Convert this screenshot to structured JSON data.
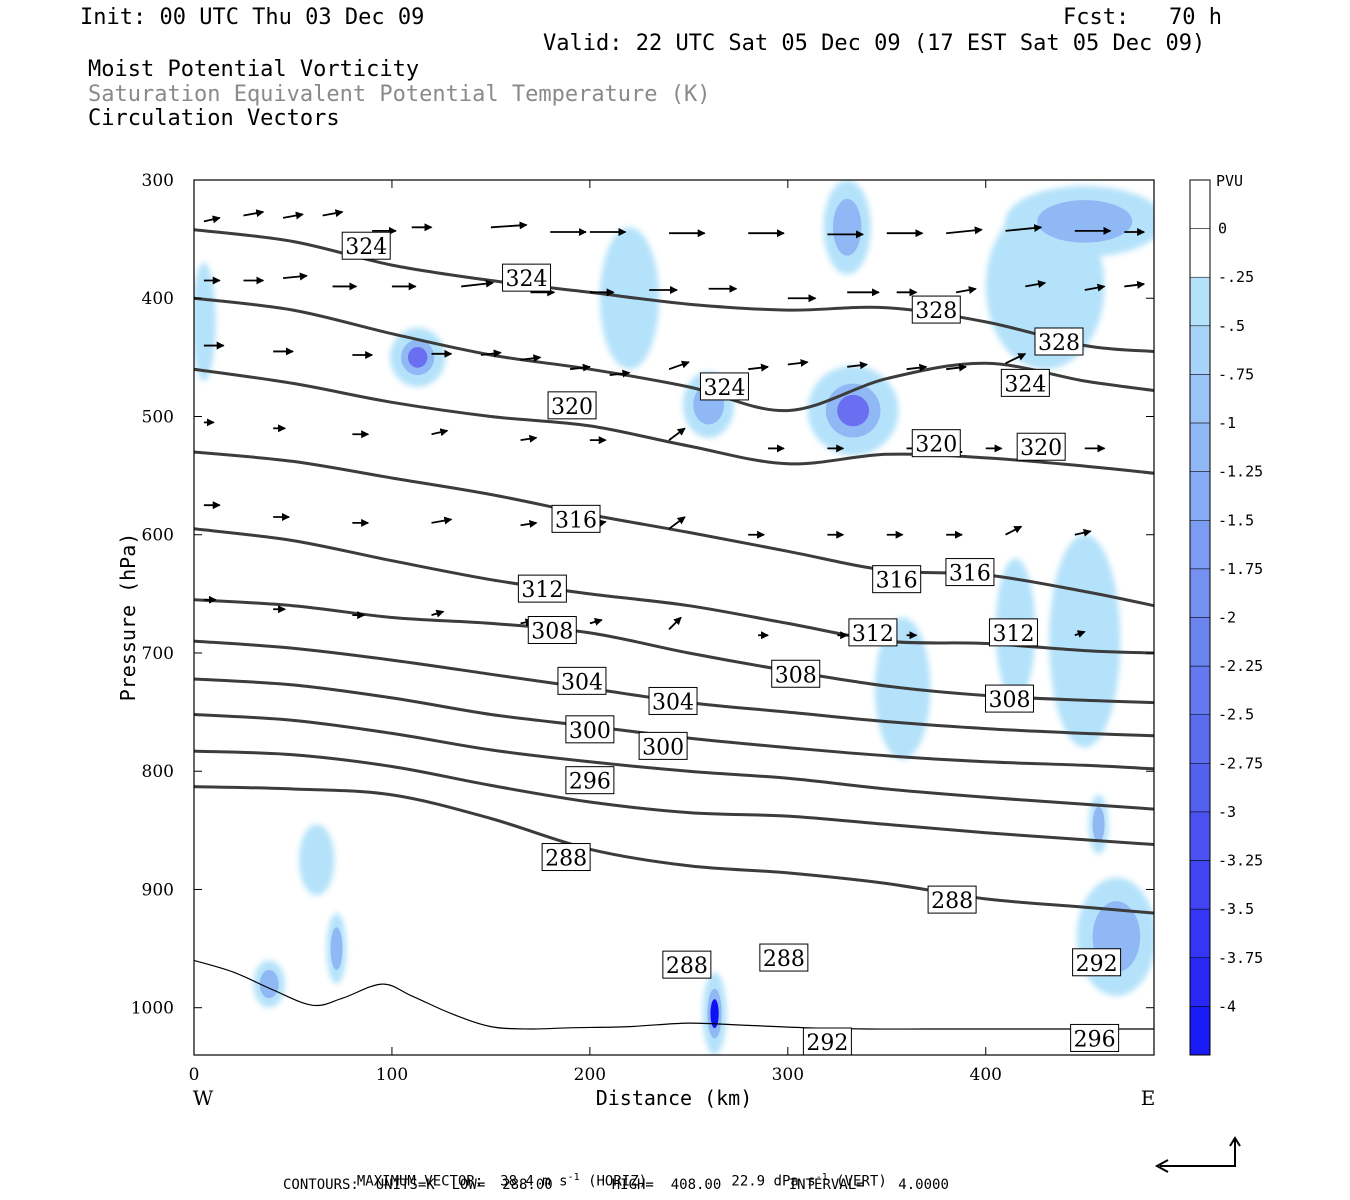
{
  "header": {
    "init": "Init: 00 UTC Thu 03 Dec 09",
    "fcst": "Fcst:   70 h",
    "valid": "Valid: 22 UTC Sat 05 Dec 09 (17 EST Sat 05 Dec 09)",
    "fields": [
      "Moist Potential Vorticity",
      "Saturation Equivalent Potential Temperature (K)",
      "Circulation Vectors"
    ]
  },
  "footer": {
    "max_vector_label": "MAXIMUM VECTOR:",
    "max_horiz": "38.4 m s",
    "horiz_sup": "-1",
    "horiz_unit": "(HORIZ)",
    "max_vert": "22.9 dPa s",
    "vert_sup": "-1",
    "vert_unit": "(VERT)",
    "contours": "CONTOURS:  UNITS=K  LOW=  288.00       HIGH=  408.00        INTERVAL=    4.0000"
  },
  "colors": {
    "contour": "#3c3c3c",
    "pv_light": "#b4e2fa",
    "pv_mid": "#90b8f5",
    "pv_strong": "#6a6ef0",
    "pv_max": "#1010f5"
  },
  "chart_data": {
    "type": "contour",
    "xlabel": "Distance (km)",
    "ylabel": "Pressure (hPa)",
    "xlim": [
      0,
      485
    ],
    "ylim": [
      1040,
      300
    ],
    "x_ticks": [
      0,
      100,
      200,
      300,
      400
    ],
    "y_ticks": [
      300,
      400,
      500,
      600,
      700,
      800,
      900,
      1000
    ],
    "x_end_labels": {
      "left": "W",
      "right": "E"
    },
    "colorbar": {
      "title": "PVU",
      "labels": [
        "0",
        "-.25",
        "-.5",
        "-.75",
        "-1",
        "-1.25",
        "-1.5",
        "-1.75",
        "-2",
        "-2.25",
        "-2.5",
        "-2.75",
        "-3",
        "-3.25",
        "-3.5",
        "-3.75",
        "-4"
      ],
      "colors": [
        "#ffffff",
        "#ffffff",
        "#b4e2fa",
        "#a7d3f8",
        "#9ac4f6",
        "#90b8f5",
        "#86aaf3",
        "#7c9cf2",
        "#7490f1",
        "#6c84f0",
        "#6478ef",
        "#5c6cef",
        "#5460f0",
        "#4a52f1",
        "#4044f2",
        "#3436f3",
        "#2828f4",
        "#1a1af5"
      ]
    },
    "theta_es_contours": [
      {
        "value": 288,
        "x": [
          0,
          50,
          100,
          150,
          200,
          250,
          300,
          350,
          400,
          450,
          485
        ],
        "p": [
          813,
          815,
          820,
          840,
          866,
          880,
          886,
          895,
          908,
          915,
          920
        ]
      },
      {
        "value": 292,
        "x": [
          0,
          50,
          100,
          150,
          200,
          250,
          300,
          350,
          400,
          450,
          485
        ],
        "p": [
          783,
          786,
          796,
          812,
          826,
          835,
          838,
          845,
          852,
          858,
          862
        ]
      },
      {
        "value": 296,
        "x": [
          0,
          50,
          100,
          150,
          200,
          250,
          300,
          350,
          400,
          450,
          485
        ],
        "p": [
          752,
          757,
          768,
          782,
          792,
          800,
          806,
          815,
          822,
          828,
          832
        ]
      },
      {
        "value": 300,
        "x": [
          0,
          50,
          100,
          150,
          200,
          250,
          300,
          350,
          400,
          450,
          485
        ],
        "p": [
          722,
          727,
          738,
          752,
          762,
          772,
          780,
          787,
          792,
          795,
          798
        ]
      },
      {
        "value": 304,
        "x": [
          0,
          50,
          100,
          150,
          200,
          250,
          300,
          350,
          400,
          450,
          485
        ],
        "p": [
          690,
          696,
          706,
          718,
          730,
          742,
          750,
          758,
          764,
          768,
          770
        ]
      },
      {
        "value": 308,
        "x": [
          0,
          50,
          100,
          150,
          200,
          250,
          300,
          350,
          400,
          450,
          485
        ],
        "p": [
          655,
          660,
          670,
          675,
          683,
          700,
          715,
          728,
          736,
          740,
          742
        ]
      },
      {
        "value": 312,
        "x": [
          0,
          50,
          100,
          150,
          200,
          250,
          300,
          350,
          400,
          450,
          485
        ],
        "p": [
          595,
          605,
          622,
          638,
          650,
          660,
          675,
          690,
          692,
          698,
          700
        ]
      },
      {
        "value": 316,
        "x": [
          0,
          50,
          100,
          150,
          200,
          250,
          300,
          350,
          400,
          450,
          485
        ],
        "p": [
          530,
          538,
          552,
          566,
          583,
          598,
          614,
          630,
          634,
          648,
          660
        ]
      },
      {
        "value": 320,
        "x": [
          0,
          50,
          100,
          150,
          200,
          250,
          300,
          350,
          400,
          450,
          485
        ],
        "p": [
          460,
          472,
          488,
          500,
          508,
          525,
          540,
          532,
          535,
          542,
          548
        ]
      },
      {
        "value": 324,
        "x": [
          0,
          50,
          100,
          150,
          200,
          250,
          300,
          350,
          400,
          450,
          485
        ],
        "p": [
          400,
          410,
          430,
          448,
          460,
          475,
          495,
          468,
          455,
          470,
          478
        ]
      },
      {
        "value": 328,
        "x": [
          0,
          50,
          100,
          150,
          200,
          250,
          300,
          350,
          400,
          450,
          485
        ],
        "p": [
          342,
          352,
          372,
          385,
          395,
          405,
          410,
          408,
          420,
          440,
          445
        ]
      }
    ],
    "contour_labels": [
      {
        "text": "324",
        "x": 87,
        "p": 356
      },
      {
        "text": "324",
        "x": 168,
        "p": 383
      },
      {
        "text": "328",
        "x": 375,
        "p": 410
      },
      {
        "text": "328",
        "x": 437,
        "p": 437
      },
      {
        "text": "324",
        "x": 420,
        "p": 472
      },
      {
        "text": "324",
        "x": 268,
        "p": 475
      },
      {
        "text": "320",
        "x": 191,
        "p": 491
      },
      {
        "text": "320",
        "x": 375,
        "p": 523
      },
      {
        "text": "320",
        "x": 428,
        "p": 526
      },
      {
        "text": "316",
        "x": 193,
        "p": 587
      },
      {
        "text": "312",
        "x": 176,
        "p": 646
      },
      {
        "text": "316",
        "x": 355,
        "p": 638
      },
      {
        "text": "316",
        "x": 392,
        "p": 632
      },
      {
        "text": "308",
        "x": 181,
        "p": 681
      },
      {
        "text": "312",
        "x": 343,
        "p": 683
      },
      {
        "text": "312",
        "x": 414,
        "p": 683
      },
      {
        "text": "308",
        "x": 304,
        "p": 718
      },
      {
        "text": "304",
        "x": 196,
        "p": 724
      },
      {
        "text": "304",
        "x": 242,
        "p": 741
      },
      {
        "text": "308",
        "x": 412,
        "p": 739
      },
      {
        "text": "300",
        "x": 200,
        "p": 765
      },
      {
        "text": "300",
        "x": 237,
        "p": 779
      },
      {
        "text": "296",
        "x": 200,
        "p": 808
      },
      {
        "text": "288",
        "x": 188,
        "p": 873
      },
      {
        "text": "288",
        "x": 383,
        "p": 909
      },
      {
        "text": "288",
        "x": 298,
        "p": 958
      },
      {
        "text": "288",
        "x": 249,
        "p": 964
      },
      {
        "text": "292",
        "x": 456,
        "p": 962
      },
      {
        "text": "292",
        "x": 320,
        "p": 1029
      },
      {
        "text": "296",
        "x": 455,
        "p": 1026
      }
    ],
    "pv_regions": [
      {
        "x": 113,
        "p": 450,
        "rx": 14,
        "ry": 25,
        "pvu": -3.0
      },
      {
        "x": 260,
        "p": 490,
        "rx": 13,
        "ry": 28,
        "pvu": -1.75
      },
      {
        "x": 333,
        "p": 495,
        "rx": 23,
        "ry": 38,
        "pvu": -2.5
      },
      {
        "x": 330,
        "p": 340,
        "rx": 12,
        "ry": 40,
        "pvu": -1.25
      },
      {
        "x": 430,
        "p": 390,
        "rx": 30,
        "ry": 70,
        "pvu": -0.75
      },
      {
        "x": 450,
        "p": 335,
        "rx": 40,
        "ry": 30,
        "pvu": -1.0
      },
      {
        "x": 5,
        "p": 420,
        "rx": 6,
        "ry": 50,
        "pvu": -0.75
      },
      {
        "x": 220,
        "p": 400,
        "rx": 15,
        "ry": 60,
        "pvu": -0.5
      },
      {
        "x": 450,
        "p": 690,
        "rx": 18,
        "ry": 90,
        "pvu": -0.75
      },
      {
        "x": 415,
        "p": 680,
        "rx": 10,
        "ry": 60,
        "pvu": -0.75
      },
      {
        "x": 358,
        "p": 730,
        "rx": 14,
        "ry": 60,
        "pvu": -0.5
      },
      {
        "x": 466,
        "p": 940,
        "rx": 20,
        "ry": 50,
        "pvu": -1.75
      },
      {
        "x": 263,
        "p": 1005,
        "rx": 6,
        "ry": 35,
        "pvu": -4.0
      },
      {
        "x": 62,
        "p": 875,
        "rx": 9,
        "ry": 30,
        "pvu": -0.5
      },
      {
        "x": 72,
        "p": 950,
        "rx": 5,
        "ry": 30,
        "pvu": -1.0
      },
      {
        "x": 38,
        "p": 980,
        "rx": 8,
        "ry": 20,
        "pvu": -1.75
      },
      {
        "x": 457,
        "p": 845,
        "rx": 5,
        "ry": 25,
        "pvu": -1.25
      }
    ],
    "terrain": {
      "x": [
        0,
        20,
        40,
        60,
        75,
        95,
        110,
        130,
        150,
        170,
        190,
        220,
        250,
        280,
        310,
        340,
        370,
        400,
        430,
        460,
        485
      ],
      "p": [
        960,
        970,
        985,
        998,
        992,
        980,
        990,
        1005,
        1016,
        1018,
        1017,
        1016,
        1013,
        1015,
        1017,
        1018,
        1018,
        1018,
        1018,
        1018,
        1018
      ]
    },
    "vectors": [
      [
        5,
        335,
        8,
        -3
      ],
      [
        25,
        330,
        10,
        -3
      ],
      [
        45,
        332,
        10,
        -3
      ],
      [
        65,
        330,
        10,
        -3
      ],
      [
        90,
        343,
        12,
        0
      ],
      [
        110,
        340,
        10,
        0
      ],
      [
        150,
        340,
        18,
        -2
      ],
      [
        180,
        344,
        18,
        0
      ],
      [
        200,
        344,
        18,
        0
      ],
      [
        240,
        345,
        18,
        0
      ],
      [
        280,
        345,
        18,
        0
      ],
      [
        320,
        346,
        18,
        0
      ],
      [
        350,
        345,
        18,
        0
      ],
      [
        380,
        345,
        18,
        -3
      ],
      [
        410,
        343,
        18,
        -3
      ],
      [
        445,
        343,
        18,
        0
      ],
      [
        470,
        344,
        10,
        0
      ],
      [
        5,
        385,
        8,
        0
      ],
      [
        25,
        385,
        10,
        0
      ],
      [
        45,
        383,
        12,
        -2
      ],
      [
        70,
        390,
        12,
        0
      ],
      [
        100,
        390,
        12,
        0
      ],
      [
        135,
        390,
        16,
        -3
      ],
      [
        170,
        395,
        12,
        0
      ],
      [
        200,
        395,
        12,
        0
      ],
      [
        230,
        393,
        14,
        0
      ],
      [
        260,
        392,
        14,
        0
      ],
      [
        300,
        400,
        14,
        0
      ],
      [
        330,
        395,
        16,
        0
      ],
      [
        355,
        395,
        10,
        0
      ],
      [
        385,
        395,
        10,
        -3
      ],
      [
        420,
        390,
        10,
        -3
      ],
      [
        450,
        393,
        10,
        -3
      ],
      [
        470,
        390,
        10,
        -2
      ],
      [
        5,
        440,
        10,
        0
      ],
      [
        40,
        445,
        10,
        0
      ],
      [
        80,
        448,
        10,
        0
      ],
      [
        120,
        447,
        10,
        0
      ],
      [
        145,
        448,
        10,
        -2
      ],
      [
        165,
        452,
        10,
        -2
      ],
      [
        190,
        460,
        10,
        -2
      ],
      [
        210,
        465,
        10,
        -2
      ],
      [
        240,
        460,
        10,
        -6
      ],
      [
        280,
        460,
        10,
        -2
      ],
      [
        300,
        456,
        10,
        -2
      ],
      [
        330,
        458,
        10,
        -2
      ],
      [
        360,
        460,
        10,
        -2
      ],
      [
        380,
        460,
        10,
        -2
      ],
      [
        410,
        455,
        10,
        -8
      ],
      [
        5,
        505,
        5,
        0
      ],
      [
        40,
        510,
        6,
        0
      ],
      [
        80,
        515,
        8,
        0
      ],
      [
        120,
        515,
        8,
        -3
      ],
      [
        165,
        520,
        8,
        -2
      ],
      [
        200,
        520,
        8,
        0
      ],
      [
        240,
        520,
        8,
        -10
      ],
      [
        290,
        527,
        8,
        0
      ],
      [
        320,
        527,
        8,
        0
      ],
      [
        360,
        527,
        8,
        0
      ],
      [
        380,
        530,
        8,
        0
      ],
      [
        400,
        527,
        8,
        0
      ],
      [
        425,
        524,
        10,
        0
      ],
      [
        450,
        527,
        10,
        0
      ],
      [
        5,
        575,
        8,
        0
      ],
      [
        40,
        585,
        8,
        0
      ],
      [
        80,
        590,
        8,
        0
      ],
      [
        120,
        590,
        10,
        -3
      ],
      [
        165,
        592,
        8,
        -2
      ],
      [
        200,
        592,
        8,
        -3
      ],
      [
        240,
        595,
        8,
        -10
      ],
      [
        280,
        600,
        8,
        0
      ],
      [
        320,
        600,
        8,
        0
      ],
      [
        350,
        600,
        8,
        0
      ],
      [
        380,
        600,
        8,
        0
      ],
      [
        410,
        600,
        8,
        -7
      ],
      [
        445,
        600,
        8,
        -3
      ],
      [
        5,
        655,
        6,
        0
      ],
      [
        40,
        663,
        6,
        0
      ],
      [
        80,
        668,
        6,
        0
      ],
      [
        120,
        668,
        6,
        -3
      ],
      [
        165,
        675,
        6,
        -2
      ],
      [
        200,
        675,
        6,
        -3
      ],
      [
        240,
        680,
        6,
        -10
      ],
      [
        285,
        685,
        5,
        0
      ],
      [
        325,
        685,
        5,
        0
      ],
      [
        360,
        685,
        5,
        0
      ],
      [
        415,
        685,
        5,
        0
      ],
      [
        445,
        685,
        5,
        -3
      ]
    ]
  }
}
